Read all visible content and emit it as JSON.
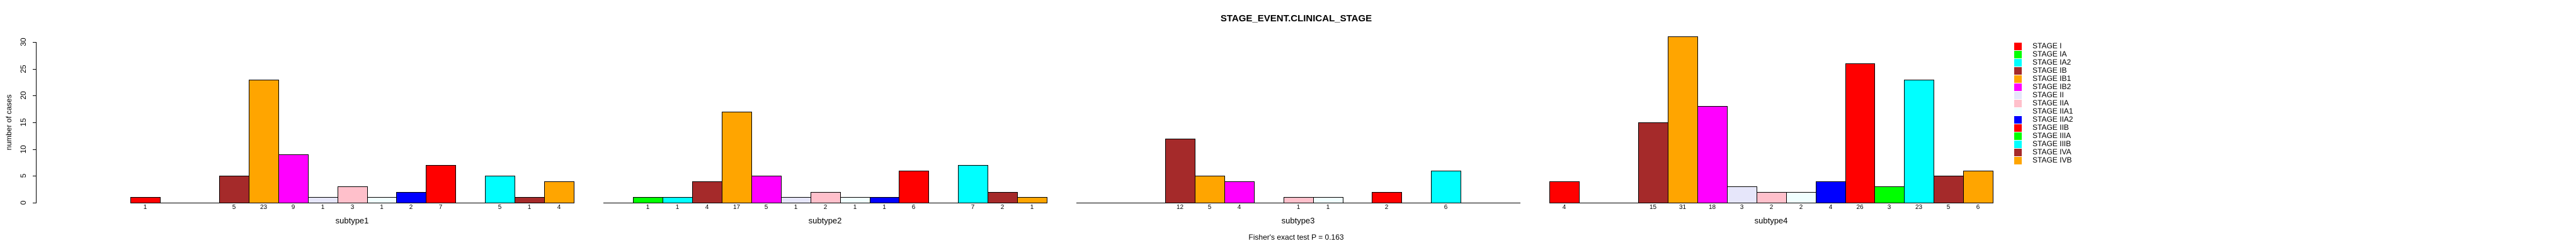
{
  "chart_data": {
    "type": "bar",
    "title": "STAGE_EVENT.CLINICAL_STAGE",
    "ylabel": "number of cases",
    "footnote": "Fisher's exact test P = 0.163",
    "ylim": [
      0,
      30
    ],
    "yticks": [
      0,
      5,
      10,
      15,
      20,
      25,
      30
    ],
    "grid": false,
    "legend_position": "right",
    "categories": [
      "STAGE I",
      "STAGE IA",
      "STAGE IA2",
      "STAGE IB",
      "STAGE IB1",
      "STAGE IB2",
      "STAGE II",
      "STAGE IIA",
      "STAGE IIA1",
      "STAGE IIA2",
      "STAGE IIB",
      "STAGE IIIA",
      "STAGE IIIB",
      "STAGE IVA",
      "STAGE IVB"
    ],
    "colors": [
      "#FF0000",
      "#00FF00",
      "#00FFFF",
      "#A52A2A",
      "#FFA500",
      "#FF00FF",
      "#E6E6FA",
      "#FFC0CB",
      "#F0FFFF",
      "#0000FF",
      "#FF0000",
      "#00FF00",
      "#00FFFF",
      "#A52A2A",
      "#FFA500"
    ],
    "groups": [
      {
        "label": "subtype1",
        "values": [
          1,
          0,
          0,
          5,
          23,
          9,
          1,
          3,
          1,
          2,
          7,
          0,
          5,
          1,
          4
        ]
      },
      {
        "label": "subtype2",
        "values": [
          0,
          1,
          1,
          4,
          17,
          5,
          1,
          2,
          1,
          1,
          6,
          0,
          7,
          2,
          1
        ]
      },
      {
        "label": "subtype3",
        "values": [
          0,
          0,
          0,
          12,
          5,
          4,
          0,
          1,
          1,
          0,
          2,
          0,
          6,
          0,
          0
        ]
      },
      {
        "label": "subtype4",
        "values": [
          4,
          0,
          0,
          15,
          31,
          18,
          3,
          2,
          2,
          4,
          26,
          3,
          23,
          5,
          6
        ]
      }
    ]
  }
}
